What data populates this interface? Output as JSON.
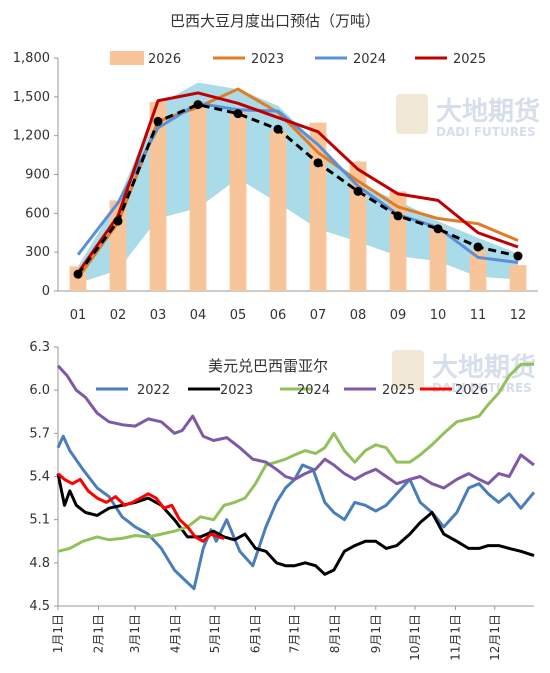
{
  "colors": {
    "c2026": "#F8C59A",
    "c2023": "#E07B26",
    "c2024": "#5B8FD6",
    "c2025": "#C00000",
    "band": "#A9DBE8",
    "avg": "#000000",
    "axis": "#999999",
    "fx2022": "#4A7EBB",
    "fx2023": "#000000",
    "fx2024": "#92C05A",
    "fx2025": "#7E5AA6",
    "fx2026": "#FF0000"
  },
  "watermark": {
    "text": "大地期货",
    "subtext": "DADI FUTURES"
  },
  "chart_data": [
    {
      "type": "bar",
      "title": "巴西大豆月度出口预估（万吨）",
      "categories": [
        "01",
        "02",
        "03",
        "04",
        "05",
        "06",
        "07",
        "08",
        "09",
        "10",
        "11",
        "12"
      ],
      "ylim": [
        0,
        1800
      ],
      "yticks": [
        "0",
        "300",
        "600",
        "900",
        "1,200",
        "1,500",
        "1,800"
      ],
      "band_range": {
        "low": [
          60,
          160,
          560,
          640,
          870,
          680,
          480,
          380,
          270,
          230,
          110,
          90
        ],
        "high": [
          190,
          700,
          1440,
          1610,
          1560,
          1430,
          1140,
          820,
          700,
          540,
          410,
          290
        ]
      },
      "series": [
        {
          "name": "2026",
          "kind": "bar",
          "values": [
            190,
            700,
            1460,
            1450,
            1400,
            1240,
            1300,
            1000,
            770,
            490,
            320,
            200
          ]
        },
        {
          "name": "2023",
          "kind": "line",
          "values": [
            100,
            530,
            1310,
            1420,
            1560,
            1380,
            1070,
            850,
            650,
            560,
            520,
            390
          ]
        },
        {
          "name": "2024",
          "kind": "line",
          "values": [
            280,
            680,
            1260,
            1450,
            1400,
            1390,
            1130,
            810,
            590,
            490,
            260,
            220
          ]
        },
        {
          "name": "2025",
          "kind": "line",
          "values": [
            140,
            580,
            1470,
            1530,
            1450,
            1340,
            1230,
            940,
            750,
            700,
            450,
            340
          ]
        },
        {
          "name": "",
          "kind": "dashed-markers",
          "values": [
            130,
            540,
            1310,
            1440,
            1370,
            1250,
            990,
            770,
            580,
            480,
            340,
            270
          ]
        }
      ],
      "legend": [
        "2026",
        "2023",
        "2024",
        "2025"
      ]
    },
    {
      "type": "line",
      "title": "美元兑巴西雷亚尔",
      "ylim": [
        4.5,
        6.3
      ],
      "yticks": [
        "4.5",
        "4.8",
        "5.1",
        "5.4",
        "5.7",
        "6.0",
        "6.3"
      ],
      "xticks": [
        "1月1日",
        "2月1日",
        "3月1日",
        "4月1日",
        "5月1日",
        "6月1日",
        "7月1日",
        "8月1日",
        "9月1日",
        "10月1日",
        "11月1日",
        "12月1日"
      ],
      "x_unit": "day_of_year",
      "legend": [
        "2022",
        "2023",
        "2024",
        "2025",
        "2026"
      ],
      "series": [
        {
          "name": "2022",
          "points": [
            [
              1,
              5.6
            ],
            [
              5,
              5.68
            ],
            [
              10,
              5.58
            ],
            [
              20,
              5.45
            ],
            [
              31,
              5.32
            ],
            [
              40,
              5.26
            ],
            [
              50,
              5.12
            ],
            [
              60,
              5.05
            ],
            [
              70,
              5.0
            ],
            [
              80,
              4.9
            ],
            [
              90,
              4.75
            ],
            [
              98,
              4.68
            ],
            [
              105,
              4.62
            ],
            [
              112,
              4.9
            ],
            [
              118,
              5.03
            ],
            [
              122,
              4.95
            ],
            [
              130,
              5.1
            ],
            [
              140,
              4.88
            ],
            [
              150,
              4.78
            ],
            [
              160,
              5.05
            ],
            [
              168,
              5.22
            ],
            [
              175,
              5.32
            ],
            [
              182,
              5.38
            ],
            [
              188,
              5.48
            ],
            [
              196,
              5.45
            ],
            [
              205,
              5.22
            ],
            [
              212,
              5.15
            ],
            [
              220,
              5.1
            ],
            [
              228,
              5.22
            ],
            [
              236,
              5.2
            ],
            [
              244,
              5.16
            ],
            [
              252,
              5.2
            ],
            [
              260,
              5.28
            ],
            [
              270,
              5.38
            ],
            [
              278,
              5.22
            ],
            [
              287,
              5.15
            ],
            [
              296,
              5.05
            ],
            [
              306,
              5.15
            ],
            [
              315,
              5.32
            ],
            [
              323,
              5.35
            ],
            [
              330,
              5.28
            ],
            [
              338,
              5.22
            ],
            [
              346,
              5.28
            ],
            [
              355,
              5.18
            ],
            [
              365,
              5.29
            ]
          ]
        },
        {
          "name": "2023",
          "points": [
            [
              1,
              5.42
            ],
            [
              6,
              5.2
            ],
            [
              10,
              5.3
            ],
            [
              15,
              5.2
            ],
            [
              22,
              5.15
            ],
            [
              31,
              5.13
            ],
            [
              40,
              5.18
            ],
            [
              50,
              5.2
            ],
            [
              60,
              5.22
            ],
            [
              70,
              5.25
            ],
            [
              80,
              5.2
            ],
            [
              90,
              5.1
            ],
            [
              100,
              4.98
            ],
            [
              110,
              4.98
            ],
            [
              120,
              5.02
            ],
            [
              128,
              4.98
            ],
            [
              136,
              4.96
            ],
            [
              144,
              5.0
            ],
            [
              152,
              4.9
            ],
            [
              160,
              4.88
            ],
            [
              168,
              4.8
            ],
            [
              175,
              4.78
            ],
            [
              182,
              4.78
            ],
            [
              190,
              4.8
            ],
            [
              198,
              4.78
            ],
            [
              205,
              4.72
            ],
            [
              212,
              4.75
            ],
            [
              220,
              4.88
            ],
            [
              228,
              4.92
            ],
            [
              236,
              4.95
            ],
            [
              244,
              4.95
            ],
            [
              252,
              4.9
            ],
            [
              260,
              4.92
            ],
            [
              270,
              5.0
            ],
            [
              278,
              5.08
            ],
            [
              287,
              5.15
            ],
            [
              296,
              5.0
            ],
            [
              306,
              4.95
            ],
            [
              315,
              4.9
            ],
            [
              323,
              4.9
            ],
            [
              330,
              4.92
            ],
            [
              338,
              4.92
            ],
            [
              346,
              4.9
            ],
            [
              355,
              4.88
            ],
            [
              365,
              4.85
            ]
          ]
        },
        {
          "name": "2024",
          "points": [
            [
              1,
              4.88
            ],
            [
              10,
              4.9
            ],
            [
              20,
              4.95
            ],
            [
              31,
              4.98
            ],
            [
              40,
              4.96
            ],
            [
              50,
              4.97
            ],
            [
              60,
              4.99
            ],
            [
              70,
              4.98
            ],
            [
              80,
              5.0
            ],
            [
              90,
              5.02
            ],
            [
              100,
              5.05
            ],
            [
              110,
              5.12
            ],
            [
              120,
              5.1
            ],
            [
              128,
              5.2
            ],
            [
              136,
              5.22
            ],
            [
              144,
              5.25
            ],
            [
              152,
              5.35
            ],
            [
              160,
              5.48
            ],
            [
              168,
              5.5
            ],
            [
              175,
              5.52
            ],
            [
              182,
              5.55
            ],
            [
              190,
              5.58
            ],
            [
              198,
              5.56
            ],
            [
              205,
              5.6
            ],
            [
              212,
              5.7
            ],
            [
              220,
              5.58
            ],
            [
              228,
              5.5
            ],
            [
              236,
              5.58
            ],
            [
              244,
              5.62
            ],
            [
              252,
              5.6
            ],
            [
              260,
              5.5
            ],
            [
              270,
              5.5
            ],
            [
              278,
              5.55
            ],
            [
              287,
              5.62
            ],
            [
              296,
              5.7
            ],
            [
              306,
              5.78
            ],
            [
              315,
              5.8
            ],
            [
              323,
              5.82
            ],
            [
              330,
              5.9
            ],
            [
              338,
              5.98
            ],
            [
              346,
              6.1
            ],
            [
              355,
              6.18
            ],
            [
              365,
              6.18
            ]
          ]
        },
        {
          "name": "2025",
          "points": [
            [
              1,
              6.17
            ],
            [
              8,
              6.1
            ],
            [
              15,
              6.0
            ],
            [
              22,
              5.95
            ],
            [
              31,
              5.84
            ],
            [
              40,
              5.78
            ],
            [
              50,
              5.76
            ],
            [
              60,
              5.75
            ],
            [
              70,
              5.8
            ],
            [
              80,
              5.78
            ],
            [
              90,
              5.7
            ],
            [
              96,
              5.72
            ],
            [
              104,
              5.82
            ],
            [
              112,
              5.68
            ],
            [
              120,
              5.65
            ],
            [
              130,
              5.67
            ],
            [
              140,
              5.6
            ],
            [
              150,
              5.52
            ],
            [
              160,
              5.5
            ],
            [
              168,
              5.45
            ],
            [
              175,
              5.4
            ],
            [
              182,
              5.38
            ],
            [
              190,
              5.42
            ],
            [
              198,
              5.45
            ],
            [
              205,
              5.52
            ],
            [
              212,
              5.48
            ],
            [
              220,
              5.42
            ],
            [
              228,
              5.38
            ],
            [
              236,
              5.42
            ],
            [
              244,
              5.45
            ],
            [
              252,
              5.4
            ],
            [
              260,
              5.35
            ],
            [
              270,
              5.38
            ],
            [
              278,
              5.4
            ],
            [
              287,
              5.35
            ],
            [
              296,
              5.32
            ],
            [
              306,
              5.38
            ],
            [
              315,
              5.42
            ],
            [
              323,
              5.38
            ],
            [
              330,
              5.35
            ],
            [
              338,
              5.42
            ],
            [
              346,
              5.4
            ],
            [
              355,
              5.55
            ],
            [
              365,
              5.48
            ]
          ]
        },
        {
          "name": "2026",
          "points": [
            [
              1,
              5.42
            ],
            [
              6,
              5.38
            ],
            [
              12,
              5.35
            ],
            [
              18,
              5.38
            ],
            [
              24,
              5.3
            ],
            [
              31,
              5.25
            ],
            [
              38,
              5.22
            ],
            [
              45,
              5.26
            ],
            [
              52,
              5.2
            ],
            [
              58,
              5.22
            ],
            [
              64,
              5.25
            ],
            [
              70,
              5.28
            ],
            [
              76,
              5.25
            ],
            [
              82,
              5.18
            ],
            [
              88,
              5.2
            ],
            [
              94,
              5.1
            ],
            [
              100,
              5.05
            ],
            [
              106,
              4.98
            ],
            [
              112,
              4.95
            ],
            [
              118,
              5.0
            ],
            [
              124,
              4.98
            ],
            [
              128,
              4.97
            ]
          ]
        }
      ]
    }
  ]
}
